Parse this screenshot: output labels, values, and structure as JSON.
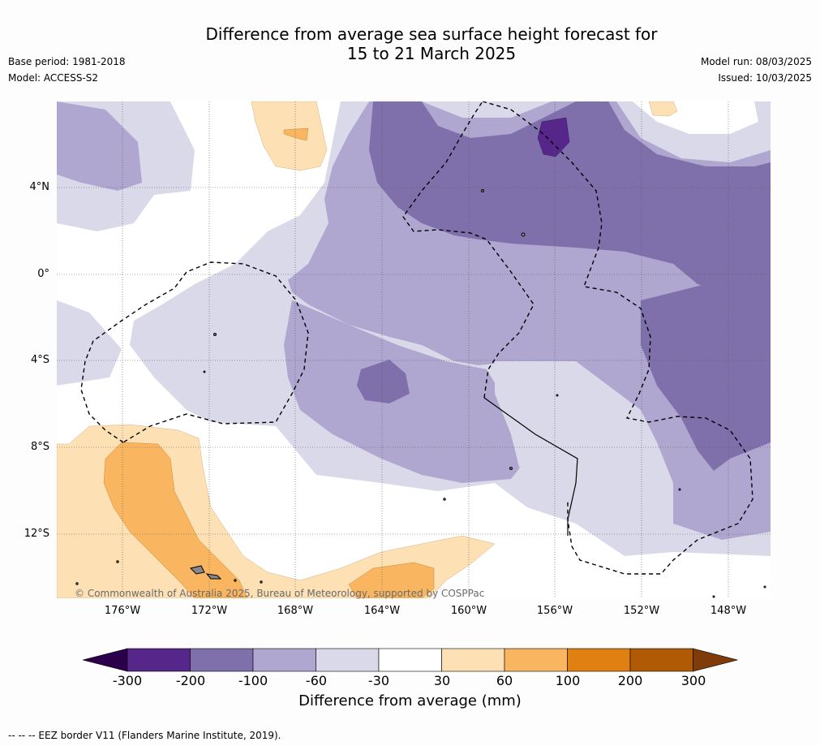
{
  "title": {
    "line1": "Difference from average sea surface height forecast for",
    "line2": "15 to 21 March 2025"
  },
  "meta_left": {
    "base_period": "Base period: 1981-2018",
    "model": "Model: ACCESS-S2"
  },
  "meta_right": {
    "model_run": "Model run: 08/03/2025",
    "issued": "Issued: 10/03/2025"
  },
  "map": {
    "lat_ticks": [
      "4°N",
      "0°",
      "4°S",
      "8°S",
      "12°S"
    ],
    "lon_ticks": [
      "176°W",
      "172°W",
      "168°W",
      "164°W",
      "160°W",
      "156°W",
      "152°W",
      "148°W"
    ],
    "copyright": "© Commonwealth of Australia 2025, Bureau of Meteorology, supported by COSPPac",
    "colors": {
      "lt_-200": "#56268a",
      "-200_-100": "#7f70ab",
      "-100_-60": "#afa7d0",
      "-60_-30": "#d9d9ea",
      "-30_30": "#ffffff",
      "30_60": "#fde0b4",
      "60_100": "#f9b55f",
      "100_200": "#e08013",
      "200_300": "#b15a06",
      "gt_300": "#7f3b08",
      "lt_-300": "#2d004b"
    }
  },
  "colorbar": {
    "labels": [
      "-300",
      "-200",
      "-100",
      "-60",
      "-30",
      "30",
      "60",
      "100",
      "200",
      "300"
    ],
    "colors": [
      "#56268a",
      "#7f70ab",
      "#afa7d0",
      "#d9d9ea",
      "#ffffff",
      "#fde0b4",
      "#f9b55f",
      "#e08013",
      "#b15a06"
    ],
    "under_color": "#2d004b",
    "over_color": "#7f3b08",
    "title": "Difference from average (mm)"
  },
  "footnote": "--  --  -- EEZ border V11 (Flanders Marine Institute, 2019)."
}
